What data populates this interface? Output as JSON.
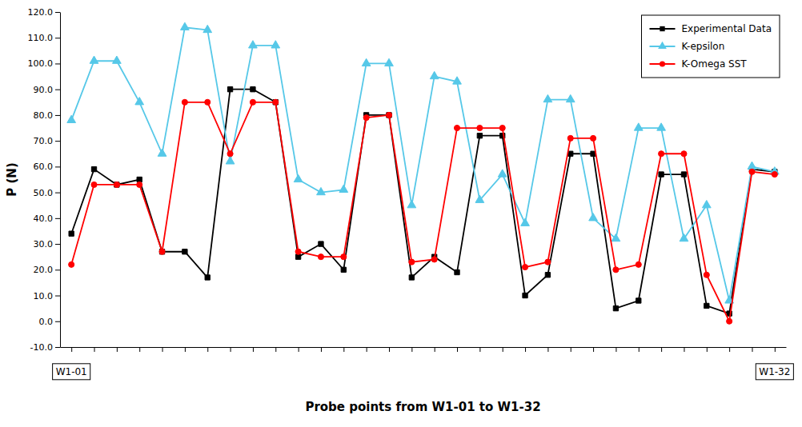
{
  "chart_data": {
    "type": "line",
    "xlabel": "Probe points from W1-01 to W1-32",
    "ylabel": "P (N)",
    "x": [
      1,
      2,
      3,
      4,
      5,
      6,
      7,
      8,
      9,
      10,
      11,
      12,
      13,
      14,
      15,
      16,
      17,
      18,
      19,
      20,
      21,
      22,
      23,
      24,
      25,
      26,
      27,
      28,
      29,
      30,
      31,
      32
    ],
    "series": [
      {
        "name": "Experimental Data",
        "color": "black",
        "marker": "square",
        "values": [
          34,
          59,
          53,
          55,
          27,
          27,
          17,
          90,
          90,
          85,
          25,
          30,
          20,
          80,
          80,
          17,
          25,
          19,
          72,
          72,
          10,
          18,
          65,
          65,
          5,
          8,
          57,
          57,
          6,
          3,
          59,
          58
        ]
      },
      {
        "name": "K-epsilon",
        "color": "#56C8E8",
        "marker": "triangle",
        "values": [
          78,
          101,
          101,
          85,
          65,
          114,
          113,
          62,
          107,
          107,
          55,
          50,
          51,
          100,
          100,
          45,
          95,
          93,
          47,
          57,
          38,
          86,
          86,
          40,
          32,
          75,
          75,
          32,
          45,
          8,
          60,
          58
        ]
      },
      {
        "name": "K-Omega SST",
        "color": "red",
        "marker": "circle",
        "values": [
          22,
          53,
          53,
          53,
          27,
          85,
          85,
          65,
          85,
          85,
          27,
          25,
          25,
          79,
          80,
          23,
          24,
          75,
          75,
          75,
          21,
          23,
          71,
          71,
          20,
          22,
          65,
          65,
          18,
          0,
          58,
          57
        ]
      }
    ],
    "xlim": [
      0.5,
      32.5
    ],
    "xticks": [
      1,
      2,
      3,
      4,
      5,
      6,
      7,
      8,
      9,
      10,
      11,
      12,
      13,
      14,
      15,
      16,
      17,
      18,
      19,
      20,
      21,
      22,
      23,
      24,
      25,
      26,
      27,
      28,
      29,
      30,
      31,
      32
    ],
    "ylim": [
      -10.0,
      120.0
    ],
    "yticks": [
      {
        "value": -10,
        "label": "-10.0"
      },
      {
        "value": 0,
        "label": "0.0"
      },
      {
        "value": 10,
        "label": "10.0"
      },
      {
        "value": 20,
        "label": "20.0"
      },
      {
        "value": 30,
        "label": "30.0"
      },
      {
        "value": 40,
        "label": "40.0"
      },
      {
        "value": 50,
        "label": "50.0"
      },
      {
        "value": 60,
        "label": "60.0"
      },
      {
        "value": 70,
        "label": "70.0"
      },
      {
        "value": 80,
        "label": "80.0"
      },
      {
        "value": 90,
        "label": "90.0"
      },
      {
        "value": 100,
        "label": "100.0"
      },
      {
        "value": 110,
        "label": "110.0"
      },
      {
        "value": 120,
        "label": "120.0"
      }
    ],
    "tick_labels": "y",
    "grid": false,
    "legend": "upper right",
    "annotations": [
      {
        "text": "W1-01",
        "x": 1
      },
      {
        "text": "W1-32",
        "x": 32
      }
    ]
  }
}
